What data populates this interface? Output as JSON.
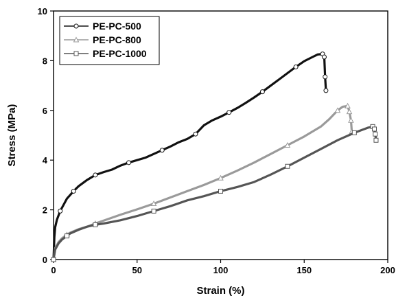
{
  "chart_data": {
    "type": "line",
    "title": "",
    "xlabel": "Strain (%)",
    "ylabel": "Stress (MPa)",
    "xlim": [
      0,
      200
    ],
    "ylim": [
      0,
      10
    ],
    "x_ticks": [
      0,
      50,
      100,
      150,
      200
    ],
    "y_ticks": [
      0,
      2,
      4,
      6,
      8,
      10
    ],
    "grid": false,
    "legend_position": "top-left",
    "series": [
      {
        "name": "PE-PC-500",
        "color": "#111111",
        "marker": "circle",
        "points": [
          [
            0,
            0
          ],
          [
            0.5,
            0.9
          ],
          [
            1,
            1.3
          ],
          [
            2,
            1.6
          ],
          [
            4,
            1.95
          ],
          [
            6,
            2.2
          ],
          [
            8,
            2.45
          ],
          [
            10,
            2.6
          ],
          [
            12,
            2.75
          ],
          [
            15,
            2.95
          ],
          [
            18,
            3.1
          ],
          [
            20,
            3.2
          ],
          [
            25,
            3.4
          ],
          [
            30,
            3.52
          ],
          [
            35,
            3.62
          ],
          [
            40,
            3.78
          ],
          [
            45,
            3.9
          ],
          [
            50,
            4.0
          ],
          [
            55,
            4.1
          ],
          [
            60,
            4.25
          ],
          [
            65,
            4.4
          ],
          [
            70,
            4.55
          ],
          [
            75,
            4.72
          ],
          [
            80,
            4.85
          ],
          [
            85,
            5.05
          ],
          [
            90,
            5.4
          ],
          [
            95,
            5.6
          ],
          [
            100,
            5.75
          ],
          [
            105,
            5.92
          ],
          [
            110,
            6.1
          ],
          [
            115,
            6.3
          ],
          [
            120,
            6.52
          ],
          [
            125,
            6.75
          ],
          [
            130,
            7.0
          ],
          [
            135,
            7.25
          ],
          [
            140,
            7.5
          ],
          [
            145,
            7.75
          ],
          [
            150,
            7.98
          ],
          [
            155,
            8.15
          ],
          [
            158,
            8.25
          ],
          [
            161,
            8.27
          ],
          [
            162,
            8.15
          ],
          [
            162.5,
            7.35
          ],
          [
            163,
            6.8
          ]
        ]
      },
      {
        "name": "PE-PC-800",
        "color": "#9a9a9a",
        "marker": "triangle",
        "points": [
          [
            0,
            0
          ],
          [
            1,
            0.45
          ],
          [
            3,
            0.7
          ],
          [
            5,
            0.85
          ],
          [
            8,
            1.0
          ],
          [
            10,
            1.08
          ],
          [
            15,
            1.22
          ],
          [
            20,
            1.32
          ],
          [
            25,
            1.45
          ],
          [
            30,
            1.57
          ],
          [
            40,
            1.8
          ],
          [
            50,
            2.02
          ],
          [
            60,
            2.25
          ],
          [
            70,
            2.5
          ],
          [
            80,
            2.75
          ],
          [
            90,
            3.0
          ],
          [
            100,
            3.28
          ],
          [
            110,
            3.58
          ],
          [
            120,
            3.9
          ],
          [
            130,
            4.25
          ],
          [
            140,
            4.6
          ],
          [
            150,
            4.95
          ],
          [
            160,
            5.35
          ],
          [
            165,
            5.65
          ],
          [
            170,
            6.0
          ],
          [
            173,
            6.15
          ],
          [
            176,
            6.18
          ],
          [
            177,
            5.95
          ],
          [
            178,
            5.6
          ],
          [
            178.5,
            5.15
          ]
        ]
      },
      {
        "name": "PE-PC-1000",
        "color": "#555555",
        "marker": "square",
        "points": [
          [
            0,
            0
          ],
          [
            1,
            0.4
          ],
          [
            3,
            0.65
          ],
          [
            5,
            0.8
          ],
          [
            8,
            0.95
          ],
          [
            10,
            1.05
          ],
          [
            15,
            1.2
          ],
          [
            20,
            1.32
          ],
          [
            25,
            1.4
          ],
          [
            30,
            1.45
          ],
          [
            40,
            1.58
          ],
          [
            50,
            1.75
          ],
          [
            60,
            1.95
          ],
          [
            70,
            2.15
          ],
          [
            80,
            2.38
          ],
          [
            90,
            2.55
          ],
          [
            100,
            2.75
          ],
          [
            110,
            2.92
          ],
          [
            120,
            3.12
          ],
          [
            130,
            3.42
          ],
          [
            140,
            3.75
          ],
          [
            150,
            4.1
          ],
          [
            160,
            4.45
          ],
          [
            170,
            4.8
          ],
          [
            180,
            5.1
          ],
          [
            188,
            5.3
          ],
          [
            191,
            5.35
          ],
          [
            192,
            5.25
          ],
          [
            192.5,
            5.05
          ],
          [
            193,
            4.8
          ]
        ]
      }
    ]
  }
}
